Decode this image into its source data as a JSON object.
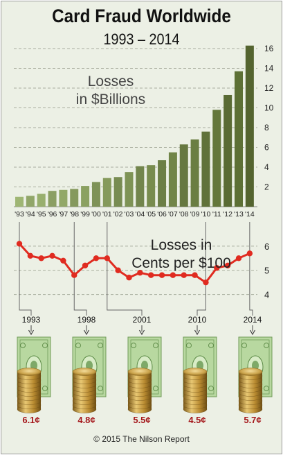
{
  "header": {
    "title": "Card Fraud Worldwide",
    "subtitle": "1993 – 2014"
  },
  "chart_data": [
    {
      "type": "bar",
      "title": "Losses in $Billions",
      "categories": [
        "'93",
        "'94",
        "'95",
        "'96",
        "'97",
        "'98",
        "'99",
        "'00",
        "'01",
        "'02",
        "'03",
        "'04",
        "'05",
        "'06",
        "'07",
        "'08",
        "'09",
        "'10",
        "'11",
        "'12",
        "'13",
        "'14"
      ],
      "values": [
        1.0,
        1.1,
        1.3,
        1.6,
        1.7,
        1.8,
        2.1,
        2.5,
        2.9,
        3.0,
        3.5,
        4.1,
        4.2,
        4.7,
        5.5,
        6.3,
        6.8,
        7.6,
        9.8,
        11.3,
        13.7,
        16.3
      ],
      "ylim": [
        0,
        16
      ],
      "yticks": [
        2,
        4,
        6,
        8,
        10,
        12,
        14,
        16
      ],
      "colors": [
        "#98b06e",
        "#5e7036"
      ],
      "grid": true
    },
    {
      "type": "line",
      "title": "Losses in Cents per $100",
      "values": [
        6.1,
        5.6,
        5.5,
        5.6,
        5.4,
        4.8,
        5.2,
        5.5,
        5.5,
        5.0,
        4.7,
        4.9,
        4.8,
        4.8,
        4.8,
        4.8,
        4.8,
        4.5,
        5.1,
        5.2,
        5.5,
        5.7
      ],
      "ylim": [
        3.5,
        6.6
      ],
      "yticks": [
        4,
        5,
        6
      ],
      "color": "#e02b20",
      "grid": true
    }
  ],
  "callouts": [
    {
      "year": "1993",
      "value": "6.1¢"
    },
    {
      "year": "1998",
      "value": "4.8¢"
    },
    {
      "year": "2001",
      "value": "5.5¢"
    },
    {
      "year": "2010",
      "value": "4.5¢"
    },
    {
      "year": "2014",
      "value": "5.7¢"
    }
  ],
  "footer": {
    "copyright": "© 2015 The Nilson Report"
  }
}
